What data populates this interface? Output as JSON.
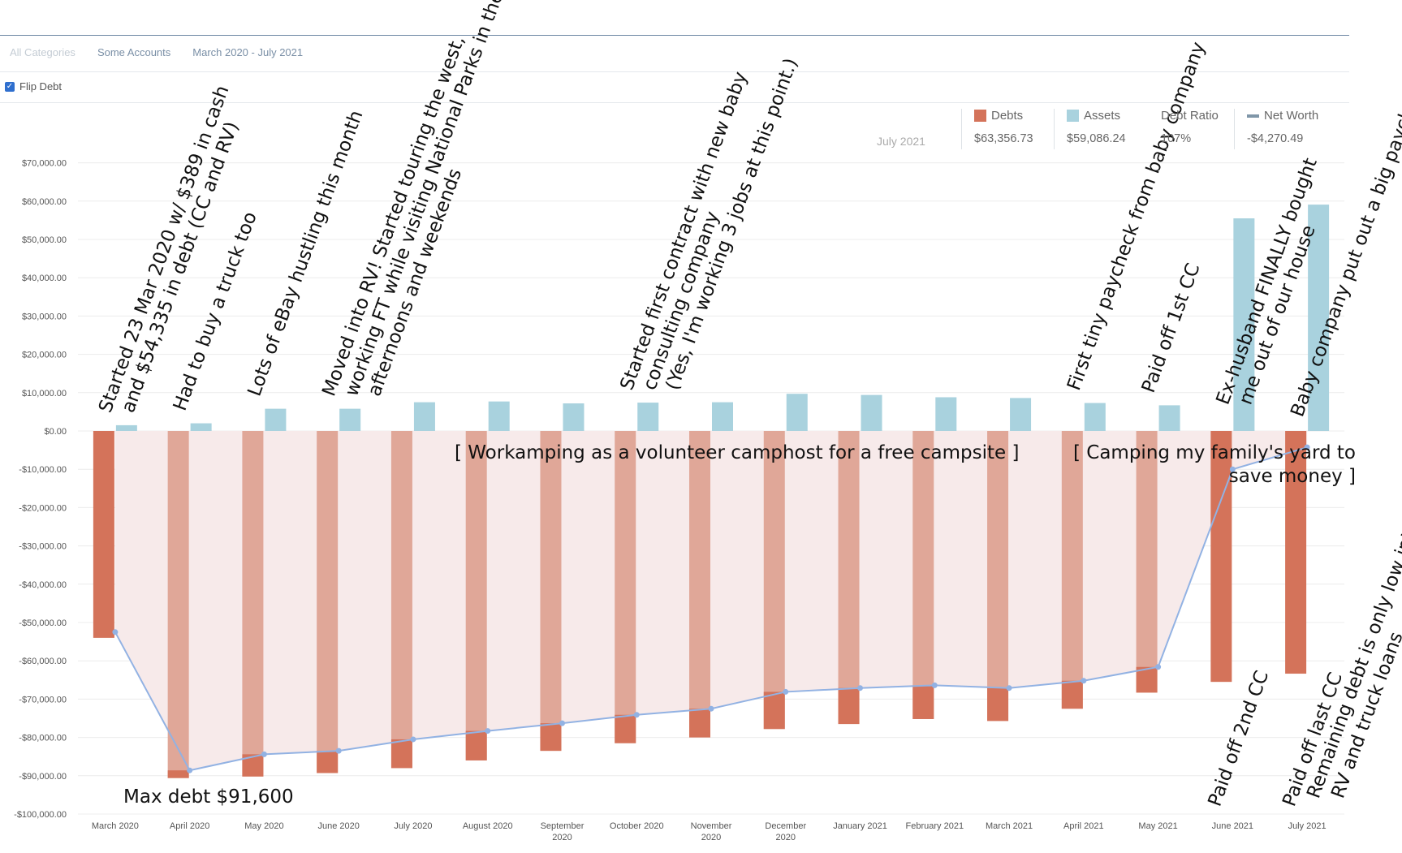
{
  "filters": {
    "categories": "All Categories",
    "accounts": "Some Accounts",
    "range": "March 2020 - July 2021"
  },
  "flip_debt": {
    "label": "Flip Debt",
    "checked": true
  },
  "legend": {
    "month": "July 2021",
    "debts": {
      "label": "Debts",
      "value": "$63,356.73"
    },
    "assets": {
      "label": "Assets",
      "value": "$59,086.24"
    },
    "ratio": {
      "label": "Debt Ratio",
      "value": "107%"
    },
    "networth": {
      "label": "Net Worth",
      "value": "-$4,270.49"
    }
  },
  "colors": {
    "debt_end": "#d4735a",
    "debt_mid": "#e0a798",
    "asset": "#a9d2de",
    "networth": "#92b2e3",
    "fill": "#f7eaea",
    "grid": "#ececec",
    "axis_text": "#555555"
  },
  "chart_data": {
    "type": "bar",
    "title": "",
    "categories": [
      "March 2020",
      "April 2020",
      "May 2020",
      "June 2020",
      "July 2020",
      "August 2020",
      "September 2020",
      "October 2020",
      "November 2020",
      "December 2020",
      "January 2021",
      "February 2021",
      "March 2021",
      "April 2021",
      "May 2021",
      "June 2021",
      "July 2021"
    ],
    "category_labels": [
      [
        "March 2020"
      ],
      [
        "April 2020"
      ],
      [
        "May 2020"
      ],
      [
        "June 2020"
      ],
      [
        "July 2020"
      ],
      [
        "August 2020"
      ],
      [
        "September",
        "2020"
      ],
      [
        "October 2020"
      ],
      [
        "November",
        "2020"
      ],
      [
        "December",
        "2020"
      ],
      [
        "January 2021"
      ],
      [
        "February 2021"
      ],
      [
        "March 2021"
      ],
      [
        "April 2021"
      ],
      [
        "May 2021"
      ],
      [
        "June 2021"
      ],
      [
        "July 2021"
      ]
    ],
    "series": [
      {
        "name": "Debts",
        "values": [
          -54000,
          -90600,
          -90200,
          -89300,
          -88000,
          -86000,
          -83500,
          -81500,
          -80000,
          -77800,
          -76500,
          -75200,
          -75700,
          -72500,
          -68300,
          -65500,
          -63356.73
        ]
      },
      {
        "name": "Assets",
        "values": [
          1500,
          2000,
          5800,
          5800,
          7500,
          7700,
          7200,
          7400,
          7500,
          9700,
          9400,
          8800,
          8600,
          7300,
          6700,
          55500,
          59086.24
        ]
      },
      {
        "name": "Net Worth",
        "values": [
          -52500,
          -88600,
          -84400,
          -83500,
          -80500,
          -78300,
          -76300,
          -74100,
          -72500,
          -68100,
          -67100,
          -66400,
          -67100,
          -65200,
          -61600,
          -10000,
          -4270.49
        ]
      }
    ],
    "ylim": [
      -100000,
      75000
    ],
    "yticks": [
      70000,
      60000,
      50000,
      40000,
      30000,
      20000,
      10000,
      0,
      -10000,
      -20000,
      -30000,
      -40000,
      -50000,
      -60000,
      -70000,
      -80000,
      -90000,
      -100000
    ],
    "ytick_labels": [
      "$70,000.00",
      "$60,000.00",
      "$50,000.00",
      "$40,000.00",
      "$30,000.00",
      "$20,000.00",
      "$10,000.00",
      "$0.00",
      "-$10,000.00",
      "-$20,000.00",
      "-$30,000.00",
      "-$40,000.00",
      "-$50,000.00",
      "-$60,000.00",
      "-$70,000.00",
      "-$80,000.00",
      "-$90,000.00",
      "-$100,000.00"
    ],
    "xlabel": "",
    "ylabel": "",
    "annotations": {
      "rotated": [
        {
          "index": 0,
          "lines": [
            "Started 23 Mar 2020 w/ $389 in cash",
            "and $54,335 in debt (CC and RV)"
          ]
        },
        {
          "index": 1,
          "lines": [
            "Had to buy a truck too"
          ]
        },
        {
          "index": 2,
          "lines": [
            "Lots of eBay hustling this month"
          ]
        },
        {
          "index": 3,
          "lines": [
            "Moved into RV! Started touring the west,",
            "working FT while visiting National Parks in the",
            "afternoons and weekends"
          ]
        },
        {
          "index": 7,
          "lines": [
            "Started first contract with new baby",
            "consulting company",
            "(Yes, I'm working 3 jobs at this point.)"
          ]
        },
        {
          "index": 13,
          "lines": [
            "First tiny paycheck from baby company"
          ]
        },
        {
          "index": 14,
          "lines": [
            "Paid off 1st CC"
          ]
        },
        {
          "index": 15,
          "lines": [
            "Ex-husband FINALLY bought",
            "me out of our house"
          ]
        },
        {
          "index": 16,
          "lines": [
            "Baby company put out a big paycheck!"
          ]
        }
      ],
      "bottom": [
        {
          "index": 15,
          "lines": [
            "Paid off 2nd CC"
          ]
        },
        {
          "index": 16,
          "lines": [
            "Paid off last CC",
            "Remaining debt is only low interest",
            "RV and truck loans"
          ]
        }
      ],
      "workamping": "[    Workamping as a volunteer camphost for a free campsite    ]",
      "camping": [
        "[ Camping my family's yard to",
        "save money ]"
      ],
      "max_debt": "Max debt $91,600"
    }
  }
}
